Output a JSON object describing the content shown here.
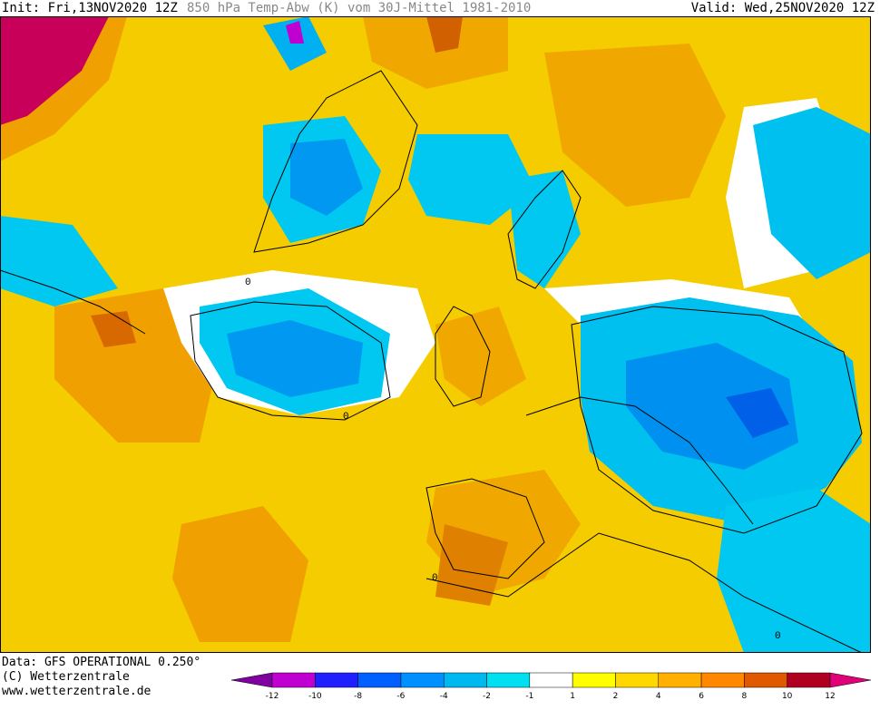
{
  "header": {
    "init": "Init: Fri,13NOV2020 12Z",
    "title": "850 hPa Temp-Abw (K) vom 30J-Mittel 1981-2010",
    "valid": "Valid: Wed,25NOV2020 12Z"
  },
  "footer": {
    "data_source": "Data: GFS OPERATIONAL 0.250°",
    "copyright": "(C) Wetterzentrale",
    "url": "www.wetterzentrale.de"
  },
  "map": {
    "contour_label": "0",
    "colors": {
      "ocean_mid": "#f5c400",
      "land_warm": "#f0a800",
      "hot": "#e07000",
      "very_hot": "#c8005a",
      "neutral": "#ffffff",
      "cold_light": "#00d8f0",
      "cold": "#00b0f0",
      "cold_strong": "#0080ff",
      "coast": "#000000"
    }
  },
  "legend": {
    "tick_labels": [
      "-12",
      "-10",
      "-8",
      "-6",
      "-4",
      "-2",
      "-1",
      "1",
      "2",
      "4",
      "6",
      "8",
      "10",
      "12"
    ],
    "colors": [
      "#8000a0",
      "#c000d0",
      "#2020ff",
      "#0060ff",
      "#0090ff",
      "#00b8f0",
      "#00e0f0",
      "#ffffff",
      "#ffff00",
      "#ffd800",
      "#ffb000",
      "#ff8800",
      "#e05800",
      "#b00020",
      "#e0007a"
    ]
  }
}
